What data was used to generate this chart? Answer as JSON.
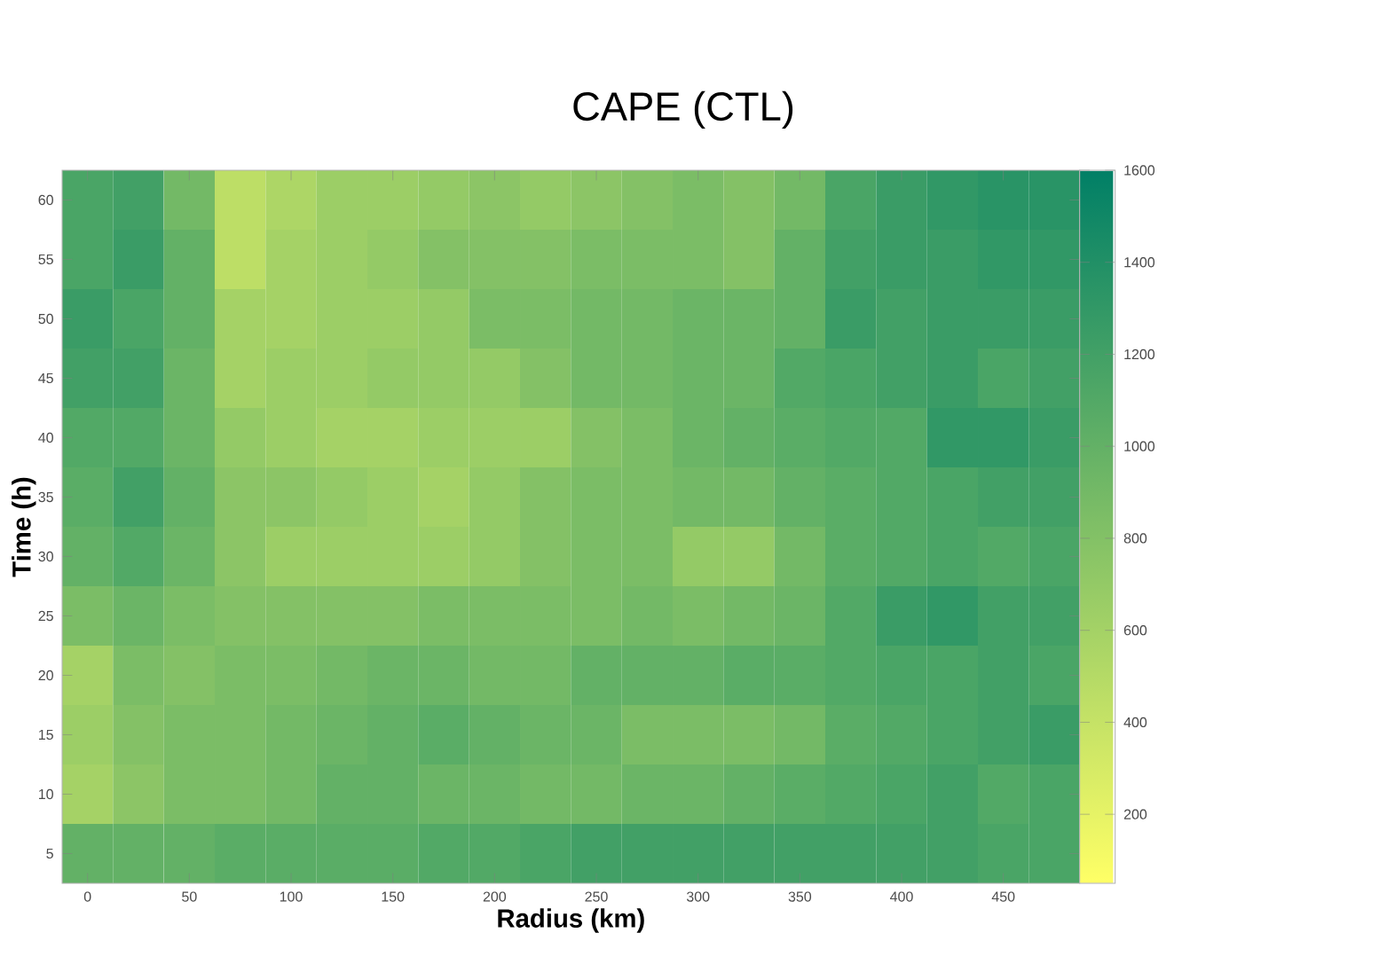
{
  "chart_data": {
    "type": "heatmap",
    "title": "CAPE (CTL)",
    "xlabel": "Radius (km)",
    "ylabel": "Time (h)",
    "clim": [
      50,
      1600
    ],
    "cticks": [
      200,
      400,
      600,
      800,
      1000,
      1200,
      1400,
      1600
    ],
    "categories": [
      "0",
      null,
      "50",
      null,
      "100",
      null,
      "150",
      null,
      "200",
      null,
      "250",
      null,
      "300",
      null,
      "350",
      null,
      "400",
      null,
      "450",
      null
    ],
    "y_categories": [
      "60",
      "55",
      "50",
      "45",
      "40",
      "35",
      "30",
      "25",
      "20",
      "15",
      "10",
      "5"
    ],
    "cells": [
      [
        1150,
        1200,
        900,
        450,
        550,
        650,
        650,
        700,
        750,
        700,
        750,
        800,
        850,
        800,
        900,
        1150,
        1250,
        1300,
        1350,
        1350
      ],
      [
        1150,
        1250,
        1000,
        450,
        600,
        650,
        700,
        800,
        800,
        800,
        850,
        850,
        850,
        800,
        1000,
        1200,
        1250,
        1250,
        1300,
        1300
      ],
      [
        1250,
        1150,
        1000,
        600,
        600,
        650,
        650,
        700,
        850,
        850,
        900,
        900,
        950,
        950,
        1000,
        1250,
        1200,
        1250,
        1250,
        1250
      ],
      [
        1200,
        1200,
        950,
        600,
        650,
        650,
        700,
        700,
        700,
        800,
        900,
        900,
        950,
        950,
        1100,
        1150,
        1200,
        1250,
        1150,
        1200
      ],
      [
        1100,
        1100,
        950,
        700,
        650,
        600,
        600,
        650,
        650,
        650,
        800,
        850,
        950,
        1000,
        1050,
        1100,
        1100,
        1300,
        1300,
        1250
      ],
      [
        1050,
        1200,
        1000,
        750,
        750,
        700,
        650,
        600,
        700,
        800,
        850,
        850,
        900,
        900,
        1000,
        1050,
        1100,
        1150,
        1200,
        1200
      ],
      [
        1000,
        1100,
        950,
        750,
        650,
        650,
        650,
        650,
        700,
        800,
        850,
        850,
        700,
        700,
        900,
        1050,
        1100,
        1150,
        1100,
        1150
      ],
      [
        850,
        950,
        850,
        800,
        800,
        800,
        800,
        850,
        850,
        850,
        850,
        900,
        850,
        900,
        950,
        1100,
        1250,
        1300,
        1200,
        1200
      ],
      [
        600,
        850,
        800,
        850,
        850,
        900,
        950,
        950,
        900,
        900,
        1000,
        1000,
        1000,
        1050,
        1050,
        1100,
        1150,
        1150,
        1200,
        1150
      ],
      [
        650,
        800,
        850,
        850,
        900,
        950,
        1000,
        1050,
        1000,
        950,
        950,
        850,
        850,
        850,
        900,
        1050,
        1100,
        1150,
        1200,
        1250
      ],
      [
        600,
        750,
        850,
        850,
        900,
        1000,
        1000,
        950,
        950,
        900,
        900,
        950,
        950,
        1000,
        1050,
        1100,
        1150,
        1200,
        1100,
        1150
      ],
      [
        1000,
        1000,
        1000,
        1050,
        1050,
        1050,
        1050,
        1100,
        1100,
        1150,
        1200,
        1200,
        1200,
        1200,
        1200,
        1200,
        1200,
        1200,
        1150,
        1150
      ]
    ]
  }
}
